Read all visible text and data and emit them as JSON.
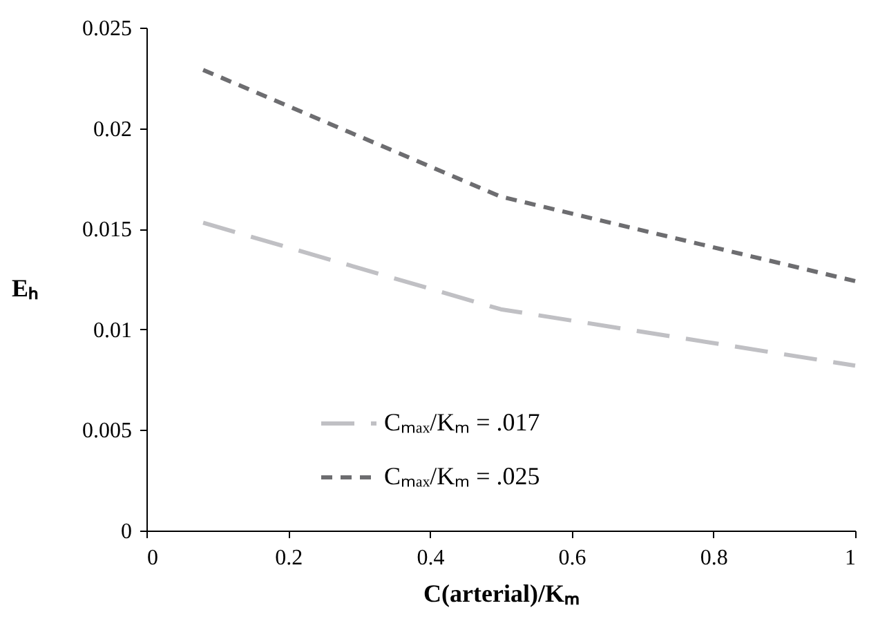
{
  "chart_data": {
    "type": "line",
    "xlabel": "C(arterial)/Kₘ",
    "ylabel": "Eₕ",
    "xlim": [
      0,
      1
    ],
    "xticks": [
      0,
      0.2,
      0.4,
      0.6,
      0.8,
      1
    ],
    "ylim": [
      0,
      0.025
    ],
    "yticks": [
      0,
      0.005,
      0.01,
      0.015,
      0.02,
      0.025
    ],
    "grid": false,
    "legend": "bottom left",
    "marker": "none",
    "line_style": "dashed",
    "x": [
      0.08,
      0.5,
      1
    ],
    "series": [
      {
        "name": "Cₘₐₓ/Kₘ = .017",
        "color": "#c0c0c4",
        "values": [
          0.0153,
          0.011,
          0.0082
        ]
      },
      {
        "name": "Cₘₐₓ/Kₘ = .025",
        "color": "#6d6d70",
        "values": [
          0.0229,
          0.0166,
          0.0124
        ]
      }
    ]
  }
}
